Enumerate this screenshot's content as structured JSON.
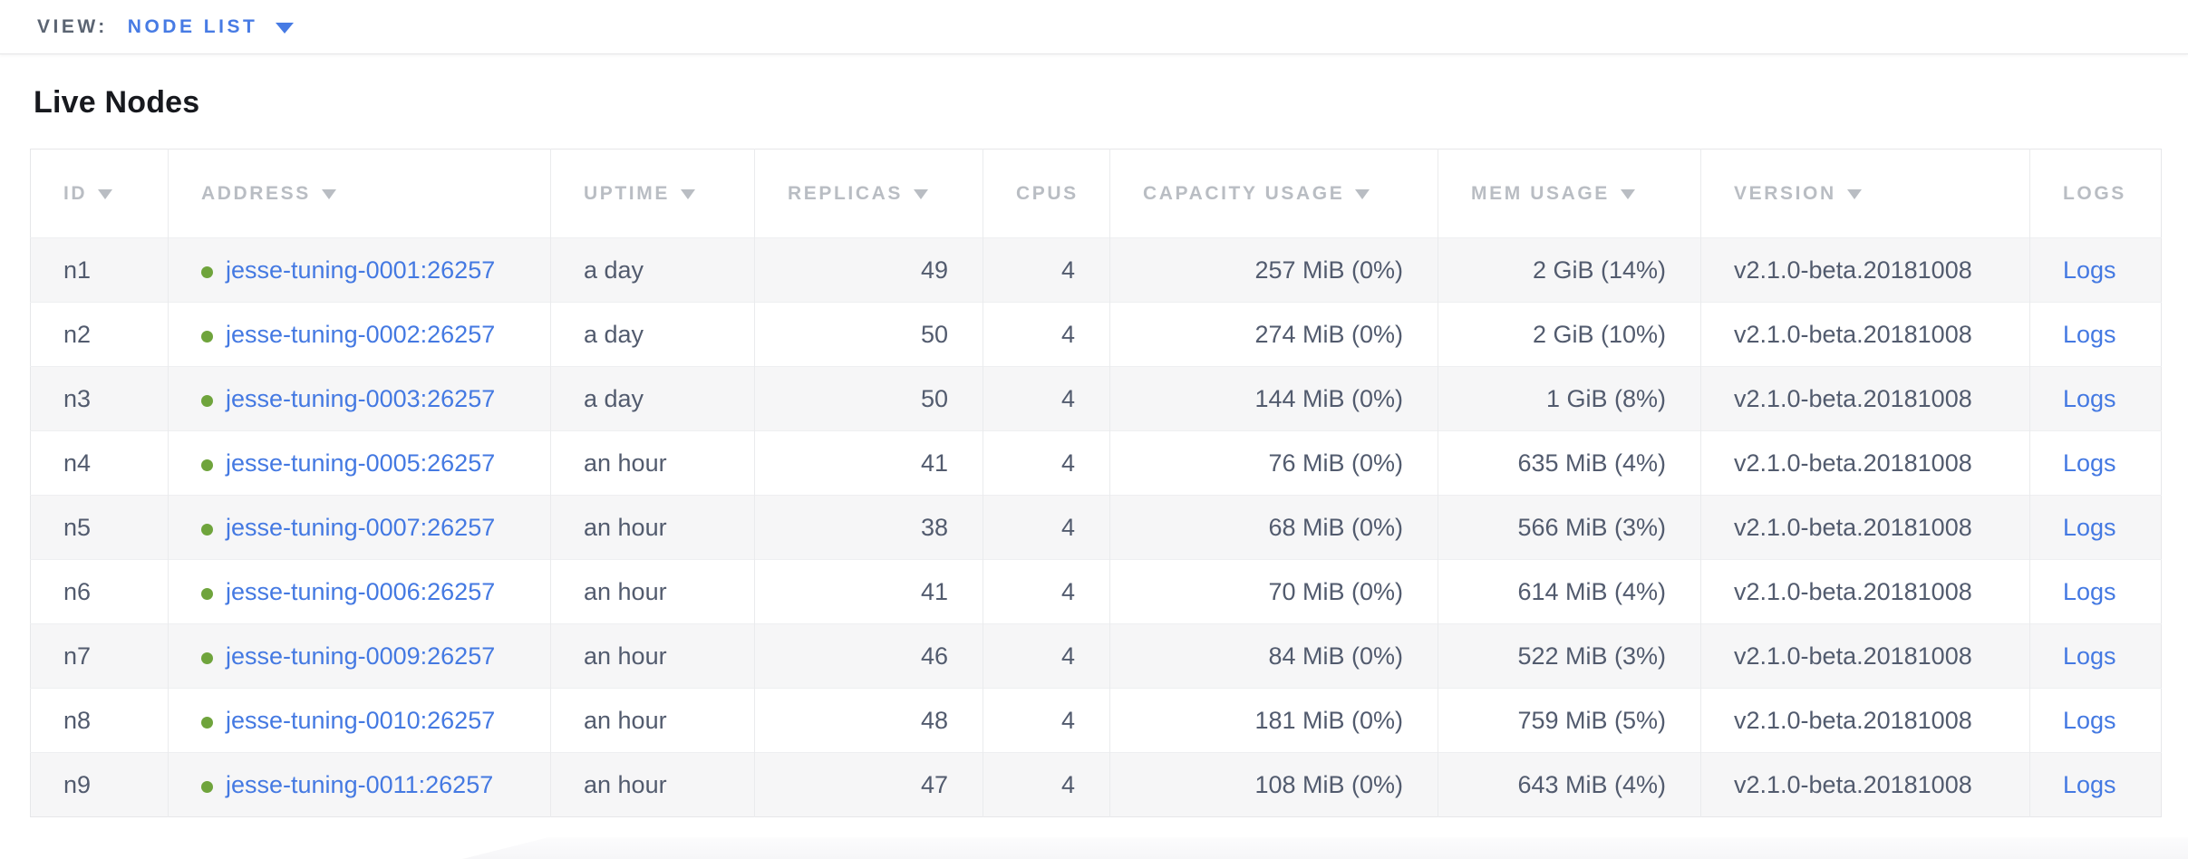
{
  "view_bar": {
    "label": "VIEW:",
    "selected": "NODE LIST"
  },
  "page": {
    "title": "Live Nodes"
  },
  "colors": {
    "link_blue": "#4479e2",
    "accent_blue": "#477be4",
    "healthy_green": "#6fa43c",
    "header_gray": "#b9bdc3",
    "body_text": "#525b6e",
    "row_stripe": "#f6f6f7"
  },
  "table": {
    "columns": [
      {
        "key": "id",
        "label": "ID",
        "sortable": true,
        "align": "left"
      },
      {
        "key": "address",
        "label": "ADDRESS",
        "sortable": true,
        "align": "left"
      },
      {
        "key": "uptime",
        "label": "UPTIME",
        "sortable": true,
        "align": "left"
      },
      {
        "key": "replicas",
        "label": "REPLICAS",
        "sortable": true,
        "align": "right"
      },
      {
        "key": "cpus",
        "label": "CPUS",
        "sortable": false,
        "align": "right"
      },
      {
        "key": "capacity",
        "label": "CAPACITY USAGE",
        "sortable": true,
        "align": "right"
      },
      {
        "key": "mem",
        "label": "MEM USAGE",
        "sortable": true,
        "align": "right"
      },
      {
        "key": "version",
        "label": "VERSION",
        "sortable": true,
        "align": "left"
      },
      {
        "key": "logs",
        "label": "LOGS",
        "sortable": false,
        "align": "left"
      }
    ],
    "rows": [
      {
        "id": "n1",
        "address": "jesse-tuning-0001:26257",
        "status": "healthy",
        "uptime": "a day",
        "replicas": "49",
        "cpus": "4",
        "capacity": "257 MiB (0%)",
        "mem": "2 GiB (14%)",
        "version": "v2.1.0-beta.20181008",
        "logs": "Logs"
      },
      {
        "id": "n2",
        "address": "jesse-tuning-0002:26257",
        "status": "healthy",
        "uptime": "a day",
        "replicas": "50",
        "cpus": "4",
        "capacity": "274 MiB (0%)",
        "mem": "2 GiB (10%)",
        "version": "v2.1.0-beta.20181008",
        "logs": "Logs"
      },
      {
        "id": "n3",
        "address": "jesse-tuning-0003:26257",
        "status": "healthy",
        "uptime": "a day",
        "replicas": "50",
        "cpus": "4",
        "capacity": "144 MiB (0%)",
        "mem": "1 GiB (8%)",
        "version": "v2.1.0-beta.20181008",
        "logs": "Logs"
      },
      {
        "id": "n4",
        "address": "jesse-tuning-0005:26257",
        "status": "healthy",
        "uptime": "an hour",
        "replicas": "41",
        "cpus": "4",
        "capacity": "76 MiB (0%)",
        "mem": "635 MiB (4%)",
        "version": "v2.1.0-beta.20181008",
        "logs": "Logs"
      },
      {
        "id": "n5",
        "address": "jesse-tuning-0007:26257",
        "status": "healthy",
        "uptime": "an hour",
        "replicas": "38",
        "cpus": "4",
        "capacity": "68 MiB (0%)",
        "mem": "566 MiB (3%)",
        "version": "v2.1.0-beta.20181008",
        "logs": "Logs"
      },
      {
        "id": "n6",
        "address": "jesse-tuning-0006:26257",
        "status": "healthy",
        "uptime": "an hour",
        "replicas": "41",
        "cpus": "4",
        "capacity": "70 MiB (0%)",
        "mem": "614 MiB (4%)",
        "version": "v2.1.0-beta.20181008",
        "logs": "Logs"
      },
      {
        "id": "n7",
        "address": "jesse-tuning-0009:26257",
        "status": "healthy",
        "uptime": "an hour",
        "replicas": "46",
        "cpus": "4",
        "capacity": "84 MiB (0%)",
        "mem": "522 MiB (3%)",
        "version": "v2.1.0-beta.20181008",
        "logs": "Logs"
      },
      {
        "id": "n8",
        "address": "jesse-tuning-0010:26257",
        "status": "healthy",
        "uptime": "an hour",
        "replicas": "48",
        "cpus": "4",
        "capacity": "181 MiB (0%)",
        "mem": "759 MiB (5%)",
        "version": "v2.1.0-beta.20181008",
        "logs": "Logs"
      },
      {
        "id": "n9",
        "address": "jesse-tuning-0011:26257",
        "status": "healthy",
        "uptime": "an hour",
        "replicas": "47",
        "cpus": "4",
        "capacity": "108 MiB (0%)",
        "mem": "643 MiB (4%)",
        "version": "v2.1.0-beta.20181008",
        "logs": "Logs"
      }
    ]
  }
}
